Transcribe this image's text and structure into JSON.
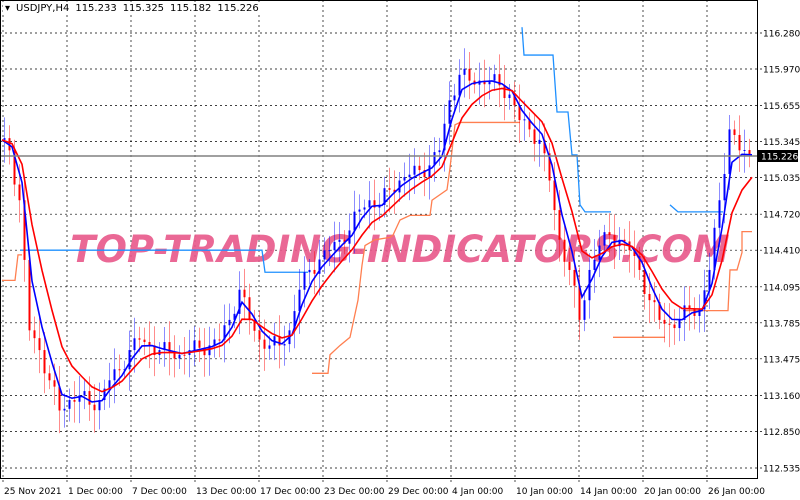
{
  "header": {
    "symbol": "USDJPY,H4",
    "open": "115.233",
    "high": "115.325",
    "low": "115.182",
    "close": "115.226"
  },
  "watermark": "TOP-TRADING-INDICATORS.COM",
  "current_price_label": "115.226",
  "colors": {
    "up": "#0000ff",
    "down": "#ff0000",
    "fast_ma": "#0000ff",
    "slow_ma": "#ff0000",
    "support": "#ff7f50",
    "resistance": "#1e90ff",
    "grid": "#000000",
    "current_price_line": "#808080"
  },
  "chart_data": {
    "type": "line",
    "subtype": "candlestick",
    "title": "USDJPY,H4",
    "grid": true,
    "ylim": [
      112.535,
      116.35
    ],
    "y_ticks": [
      "116.280",
      "115.970",
      "115.655",
      "115.345",
      "115.035",
      "114.720",
      "114.410",
      "114.095",
      "113.785",
      "113.475",
      "113.160",
      "112.850",
      "112.535"
    ],
    "x_ticks": [
      "25 Nov 2021",
      "1 Dec 00:00",
      "7 Dec 00:00",
      "13 Dec 00:00",
      "17 Dec 00:00",
      "23 Dec 00:00",
      "29 Dec 00:00",
      "4 Jan 00:00",
      "10 Jan 00:00",
      "14 Jan 00:00",
      "20 Jan 00:00",
      "26 Jan 00:00"
    ],
    "closes": [
      115.36,
      115.27,
      114.84,
      113.72,
      113.55,
      113.29,
      113.03,
      113.12,
      113.16,
      113.08,
      113.12,
      113.29,
      113.38,
      113.55,
      113.64,
      113.59,
      113.55,
      113.53,
      113.51,
      113.55,
      113.57,
      113.59,
      113.64,
      113.81,
      114.07,
      113.81,
      113.64,
      113.59,
      113.59,
      113.72,
      114.07,
      114.24,
      114.33,
      114.41,
      114.5,
      114.58,
      114.76,
      114.84,
      114.8,
      114.93,
      115.01,
      115.06,
      115.1,
      115.14,
      115.27,
      115.7,
      115.92,
      115.87,
      115.87,
      115.87,
      115.83,
      115.75,
      115.53,
      115.45,
      115.36,
      115.01,
      114.5,
      114.24,
      113.81,
      114.24,
      114.45,
      114.54,
      114.5,
      114.41,
      114.24,
      113.98,
      113.81,
      113.77,
      113.81,
      113.9,
      113.9,
      114.24,
      114.84,
      115.45,
      115.27,
      115.23
    ],
    "support_line": [
      [
        0,
        114.15
      ],
      [
        1.3,
        114.15
      ],
      [
        1.6,
        114.37
      ],
      [
        2,
        114.37
      ]
    ],
    "support_line_2": [
      [
        31,
        113.35
      ],
      [
        32.6,
        113.35
      ],
      [
        32.8,
        113.51
      ],
      [
        33.8,
        113.59
      ],
      [
        34.8,
        113.66
      ],
      [
        35.6,
        113.98
      ],
      [
        36,
        114.28
      ],
      [
        36.3,
        114.45
      ],
      [
        37.3,
        114.5
      ],
      [
        38.8,
        114.52
      ],
      [
        39.1,
        114.54
      ],
      [
        39.8,
        114.67
      ],
      [
        40.8,
        114.71
      ],
      [
        42.8,
        114.71
      ],
      [
        43,
        114.84
      ],
      [
        44.5,
        114.93
      ],
      [
        44.8,
        115.12
      ],
      [
        45.3,
        115.49
      ],
      [
        45.8,
        115.51
      ],
      [
        51.8,
        115.51
      ]
    ],
    "support_line_3": [
      [
        61.1,
        113.66
      ],
      [
        66.3,
        113.66
      ]
    ],
    "support_line_4": [
      [
        68.1,
        113.89
      ],
      [
        72.6,
        113.89
      ],
      [
        72.8,
        114.24
      ],
      [
        73.5,
        114.24
      ],
      [
        74,
        114.39
      ],
      [
        74,
        114.57
      ],
      [
        75,
        114.57
      ]
    ],
    "resistance_line": [
      [
        1.8,
        114.41
      ],
      [
        26,
        114.41
      ],
      [
        26.3,
        114.22
      ],
      [
        30.6,
        114.22
      ]
    ],
    "resistance_line_2": [
      [
        52,
        116.33
      ],
      [
        52.2,
        116.09
      ],
      [
        55.1,
        116.09
      ],
      [
        55.5,
        115.6
      ],
      [
        56.6,
        115.6
      ],
      [
        57,
        115.23
      ],
      [
        57.5,
        115.23
      ],
      [
        57.8,
        114.8
      ],
      [
        58.3,
        114.74
      ],
      [
        60.9,
        114.74
      ]
    ],
    "resistance_line_3": [
      [
        66.8,
        114.8
      ],
      [
        67.6,
        114.74
      ],
      [
        72.1,
        114.74
      ]
    ]
  }
}
